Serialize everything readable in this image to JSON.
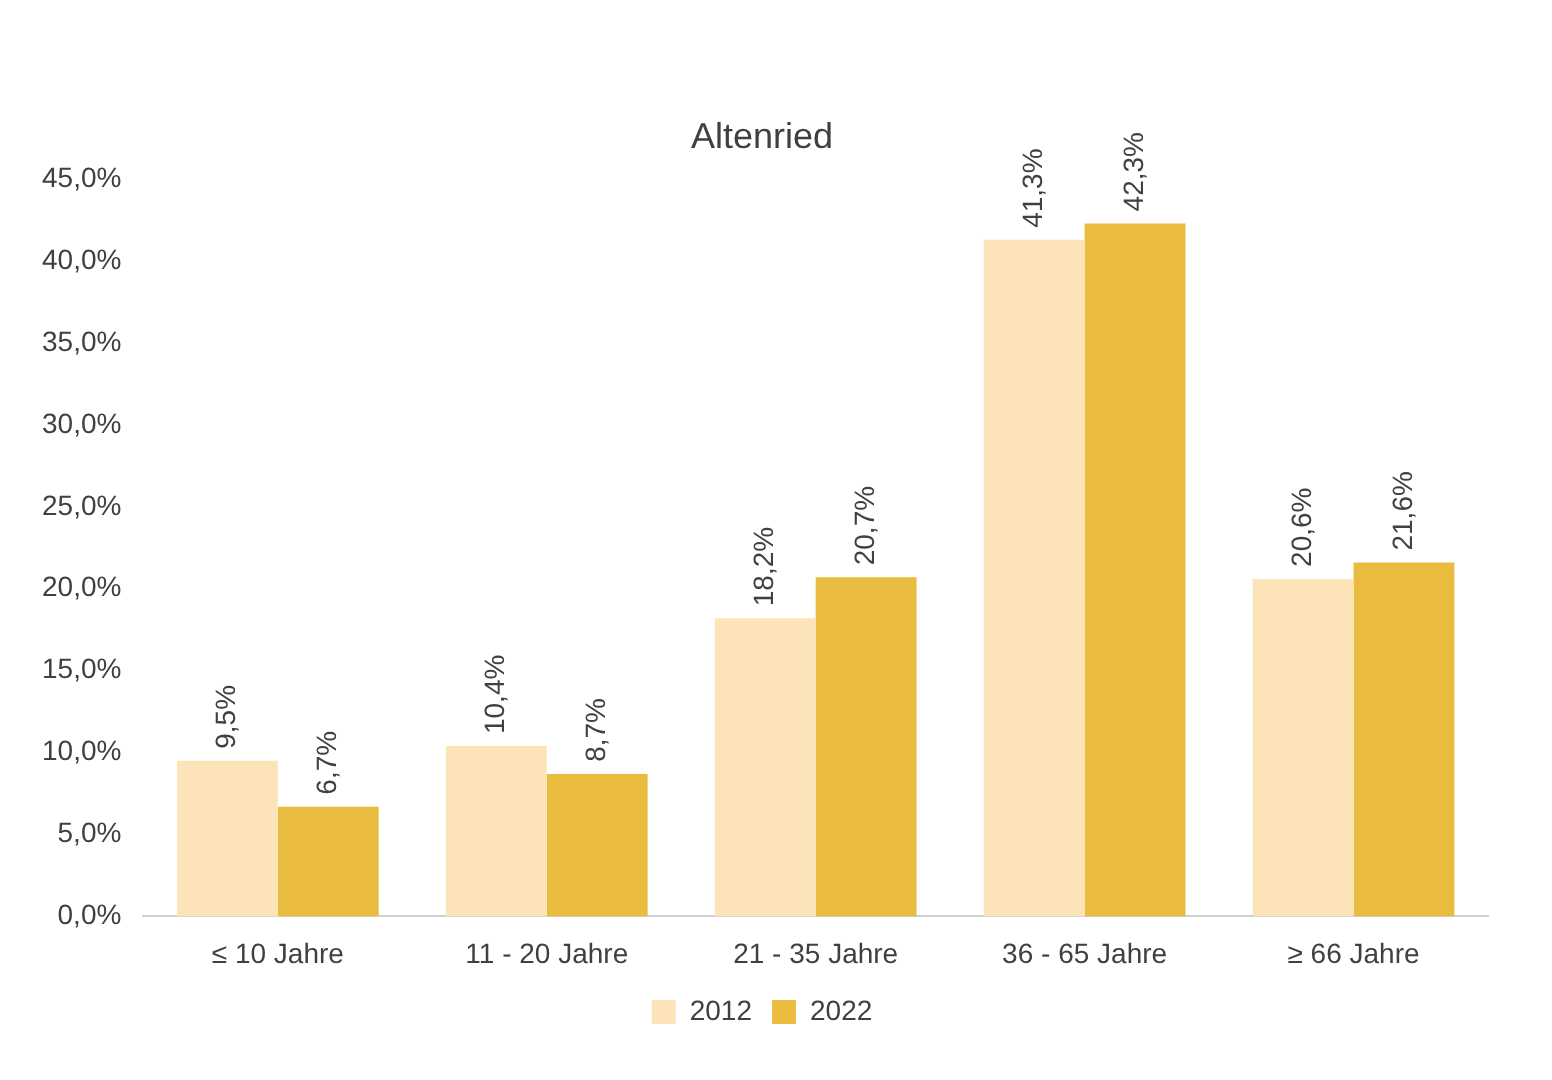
{
  "chart_data": {
    "type": "bar",
    "title": "Altenried",
    "categories": [
      "≤ 10 Jahre",
      "11 - 20 Jahre",
      "21 - 35 Jahre",
      "36 - 65 Jahre",
      "≥ 66 Jahre"
    ],
    "series": [
      {
        "name": "2012",
        "color": "#fce4b8",
        "values": [
          9.5,
          10.4,
          18.2,
          41.3,
          20.6
        ],
        "value_labels": [
          "9,5%",
          "10,4%",
          "18,2%",
          "41,3%",
          "20,6%"
        ]
      },
      {
        "name": "2022",
        "color": "#e9bb3e",
        "values": [
          6.7,
          8.7,
          20.7,
          42.3,
          21.6
        ],
        "value_labels": [
          "6,7%",
          "8,7%",
          "20,7%",
          "42,3%",
          "21,6%"
        ]
      }
    ],
    "ylim": [
      0,
      45
    ],
    "yticks": [
      {
        "value": 0,
        "label": "0,0%"
      },
      {
        "value": 5,
        "label": "5,0%"
      },
      {
        "value": 10,
        "label": "10,0%"
      },
      {
        "value": 15,
        "label": "15,0%"
      },
      {
        "value": 20,
        "label": "20,0%"
      },
      {
        "value": 25,
        "label": "25,0%"
      },
      {
        "value": 30,
        "label": "30,0%"
      },
      {
        "value": 35,
        "label": "35,0%"
      },
      {
        "value": 40,
        "label": "40,0%"
      },
      {
        "value": 45,
        "label": "45,0%"
      }
    ],
    "grid": false,
    "legend": "bottom"
  }
}
